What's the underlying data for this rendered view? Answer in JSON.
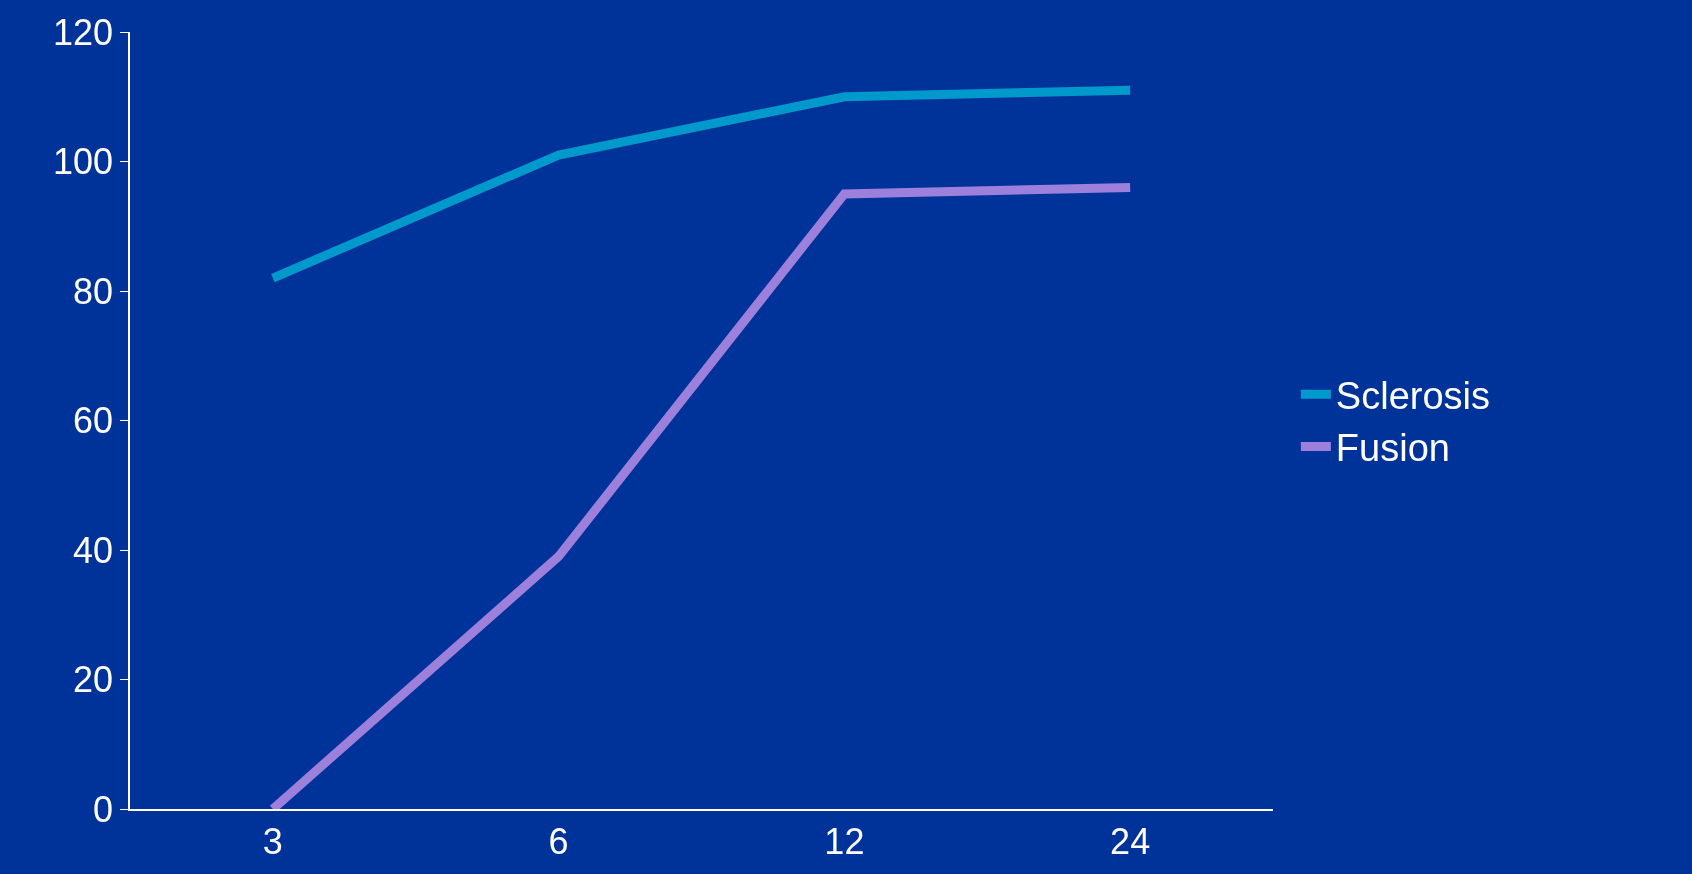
{
  "chart_data": {
    "type": "line",
    "categories": [
      "3",
      "6",
      "12",
      "24"
    ],
    "series": [
      {
        "name": "Sclerosis",
        "color": "#0099cc",
        "values": [
          82,
          101,
          110,
          111
        ]
      },
      {
        "name": "Fusion",
        "color": "#9c80dc",
        "values": [
          0,
          39,
          95,
          96
        ]
      }
    ],
    "ylim": [
      0,
      120
    ],
    "yticks": [
      0,
      20,
      40,
      60,
      80,
      100,
      120
    ],
    "grid": false,
    "legend": "right",
    "marker": "none",
    "line_style": "solid"
  }
}
